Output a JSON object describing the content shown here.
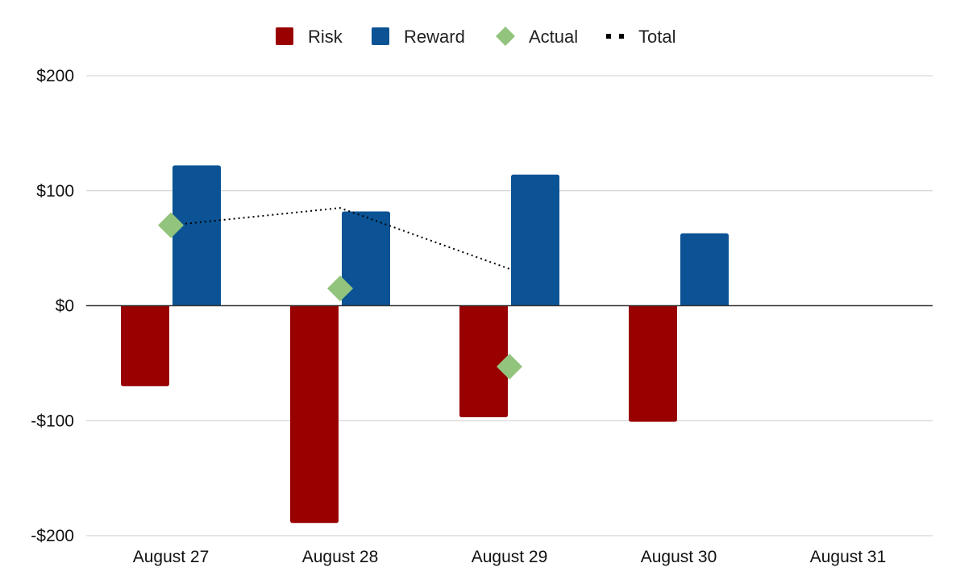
{
  "chart_data": {
    "type": "bar",
    "categories": [
      "August 27",
      "August 28",
      "August 29",
      "August 30",
      "August 31"
    ],
    "series": [
      {
        "name": "Risk",
        "kind": "bar",
        "color": "#990000",
        "values": [
          -70,
          -189,
          -97,
          -101,
          null
        ]
      },
      {
        "name": "Reward",
        "kind": "bar",
        "color": "#0b5394",
        "values": [
          122,
          82,
          114,
          63,
          null
        ]
      },
      {
        "name": "Actual",
        "kind": "scatter",
        "marker": "diamond",
        "color": "#93c47d",
        "values": [
          70,
          15,
          -53,
          null,
          null
        ]
      },
      {
        "name": "Total",
        "kind": "line",
        "style": "dotted",
        "color": "#000000",
        "values": [
          70,
          85,
          32,
          null,
          null
        ]
      }
    ],
    "y_ticks": [
      "$200",
      "$100",
      "$0",
      "-$100",
      "-$200"
    ],
    "ylim": [
      -200,
      200
    ],
    "grid": true,
    "legend_position": "top-center"
  }
}
